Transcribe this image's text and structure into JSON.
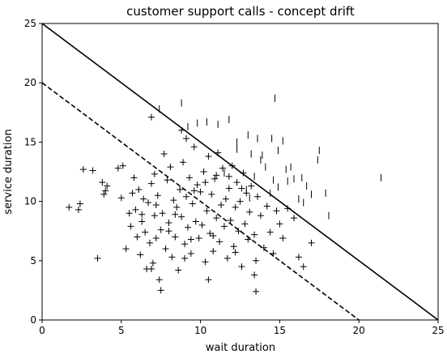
{
  "chart_data": {
    "type": "scatter",
    "title": "customer support calls - concept drift",
    "xlabel": "wait duration",
    "ylabel": "service duration",
    "xlim": [
      0,
      25
    ],
    "ylim": [
      0,
      25
    ],
    "xticks": [
      "0",
      "5",
      "10",
      "15",
      "20",
      "25"
    ],
    "yticks": [
      "0",
      "5",
      "10",
      "15",
      "20",
      "25"
    ],
    "grid": false,
    "lines": [
      {
        "style": "solid",
        "points": [
          [
            0,
            25
          ],
          [
            25,
            0
          ]
        ]
      },
      {
        "style": "dashed",
        "points": [
          [
            0,
            20
          ],
          [
            20,
            0
          ]
        ]
      }
    ],
    "series": [
      {
        "marker": "plus",
        "points": [
          [
            1.7,
            9.5
          ],
          [
            2.3,
            9.3
          ],
          [
            2.4,
            9.8
          ],
          [
            2.6,
            12.7
          ],
          [
            3.2,
            12.6
          ],
          [
            3.5,
            5.2
          ],
          [
            3.8,
            11.6
          ],
          [
            3.9,
            10.6
          ],
          [
            4.0,
            10.9
          ],
          [
            4.1,
            11.3
          ],
          [
            4.8,
            12.8
          ],
          [
            5.0,
            10.3
          ],
          [
            5.1,
            13.0
          ],
          [
            5.3,
            6.0
          ],
          [
            5.5,
            9.0
          ],
          [
            5.6,
            7.9
          ],
          [
            5.8,
            12.0
          ],
          [
            5.9,
            9.3
          ],
          [
            6.0,
            7.0
          ],
          [
            6.1,
            11.0
          ],
          [
            6.2,
            5.5
          ],
          [
            6.3,
            8.3
          ],
          [
            6.4,
            10.2
          ],
          [
            6.5,
            7.4
          ],
          [
            6.6,
            4.3
          ],
          [
            6.7,
            9.9
          ],
          [
            6.8,
            6.5
          ],
          [
            6.9,
            11.5
          ],
          [
            7.0,
            4.8
          ],
          [
            7.1,
            8.8
          ],
          [
            7.1,
            12.3
          ],
          [
            7.2,
            6.9
          ],
          [
            7.3,
            10.5
          ],
          [
            7.4,
            3.4
          ],
          [
            7.5,
            7.6
          ],
          [
            7.6,
            9.0
          ],
          [
            7.7,
            14.0
          ],
          [
            7.8,
            6.0
          ],
          [
            7.9,
            11.8
          ],
          [
            8.0,
            8.2
          ],
          [
            8.1,
            12.9
          ],
          [
            8.2,
            5.3
          ],
          [
            8.3,
            10.1
          ],
          [
            8.4,
            7.0
          ],
          [
            8.5,
            9.5
          ],
          [
            8.6,
            4.2
          ],
          [
            8.7,
            11.0
          ],
          [
            8.8,
            8.7
          ],
          [
            8.9,
            13.3
          ],
          [
            9.0,
            6.4
          ],
          [
            9.1,
            10.4
          ],
          [
            9.2,
            7.8
          ],
          [
            9.3,
            12.0
          ],
          [
            9.4,
            5.6
          ],
          [
            9.5,
            9.8
          ],
          [
            9.6,
            14.6
          ],
          [
            9.7,
            8.3
          ],
          [
            9.8,
            11.4
          ],
          [
            9.9,
            6.9
          ],
          [
            10.0,
            10.8
          ],
          [
            10.1,
            8.0
          ],
          [
            10.2,
            12.5
          ],
          [
            10.3,
            4.9
          ],
          [
            10.4,
            9.2
          ],
          [
            10.5,
            13.8
          ],
          [
            10.6,
            7.3
          ],
          [
            10.7,
            10.6
          ],
          [
            10.8,
            5.8
          ],
          [
            10.9,
            11.9
          ],
          [
            11.0,
            8.6
          ],
          [
            11.1,
            14.1
          ],
          [
            11.2,
            6.6
          ],
          [
            11.3,
            9.7
          ],
          [
            11.4,
            12.8
          ],
          [
            11.5,
            7.9
          ],
          [
            11.6,
            10.2
          ],
          [
            11.7,
            5.2
          ],
          [
            11.8,
            11.1
          ],
          [
            11.9,
            8.4
          ],
          [
            12.0,
            13.0
          ],
          [
            12.1,
            6.2
          ],
          [
            12.2,
            9.5
          ],
          [
            12.3,
            11.6
          ],
          [
            12.4,
            7.5
          ],
          [
            12.5,
            10.0
          ],
          [
            12.6,
            4.5
          ],
          [
            12.7,
            12.4
          ],
          [
            12.8,
            8.1
          ],
          [
            12.9,
            10.7
          ],
          [
            13.0,
            6.8
          ],
          [
            13.1,
            9.1
          ],
          [
            13.2,
            11.3
          ],
          [
            13.4,
            7.2
          ],
          [
            13.5,
            5.0
          ],
          [
            13.6,
            10.4
          ],
          [
            13.8,
            8.8
          ],
          [
            14.0,
            6.1
          ],
          [
            14.2,
            9.6
          ],
          [
            14.4,
            7.4
          ],
          [
            14.6,
            5.6
          ],
          [
            14.8,
            9.2
          ],
          [
            15.0,
            8.1
          ],
          [
            15.2,
            6.9
          ],
          [
            15.5,
            9.4
          ],
          [
            15.9,
            8.6
          ],
          [
            16.2,
            5.3
          ],
          [
            16.5,
            4.5
          ],
          [
            17.0,
            6.5
          ],
          [
            6.9,
            17.1
          ],
          [
            8.8,
            16.0
          ],
          [
            9.1,
            15.3
          ],
          [
            7.5,
            2.5
          ],
          [
            13.5,
            2.4
          ],
          [
            13.4,
            3.8
          ],
          [
            10.5,
            3.4
          ],
          [
            6.9,
            4.3
          ],
          [
            9.0,
            5.2
          ],
          [
            8.0,
            7.5
          ],
          [
            9.6,
            10.9
          ],
          [
            10.3,
            11.6
          ],
          [
            11.0,
            12.2
          ],
          [
            11.8,
            12.1
          ],
          [
            12.6,
            11.1
          ],
          [
            8.4,
            8.9
          ],
          [
            7.2,
            9.7
          ],
          [
            6.3,
            8.9
          ],
          [
            5.7,
            10.7
          ],
          [
            9.4,
            6.8
          ],
          [
            10.8,
            7.1
          ],
          [
            12.2,
            5.7
          ]
        ]
      },
      {
        "marker": "vline",
        "points": [
          [
            7.4,
            17.8
          ],
          [
            8.8,
            18.3
          ],
          [
            9.2,
            16.3
          ],
          [
            9.8,
            16.6
          ],
          [
            10.4,
            16.7
          ],
          [
            11.1,
            16.5
          ],
          [
            11.8,
            16.9
          ],
          [
            12.3,
            15.0
          ],
          [
            13.0,
            15.6
          ],
          [
            13.2,
            14.0
          ],
          [
            13.6,
            15.3
          ],
          [
            13.9,
            13.9
          ],
          [
            14.5,
            15.3
          ],
          [
            14.7,
            18.7
          ],
          [
            14.9,
            14.3
          ],
          [
            15.2,
            15.1
          ],
          [
            15.4,
            12.7
          ],
          [
            15.7,
            12.9
          ],
          [
            15.5,
            11.7
          ],
          [
            14.9,
            11.2
          ],
          [
            13.8,
            13.5
          ],
          [
            14.1,
            12.9
          ],
          [
            13.4,
            12.1
          ],
          [
            14.6,
            11.8
          ],
          [
            15.9,
            11.9
          ],
          [
            16.4,
            12.0
          ],
          [
            16.7,
            11.3
          ],
          [
            17.4,
            13.5
          ],
          [
            17.5,
            14.3
          ],
          [
            17.9,
            10.7
          ],
          [
            16.5,
            9.9
          ],
          [
            17.0,
            10.6
          ],
          [
            16.2,
            10.2
          ],
          [
            18.1,
            8.8
          ],
          [
            21.4,
            12.0
          ],
          [
            12.9,
            11.0
          ],
          [
            12.3,
            14.4
          ],
          [
            13.1,
            10.3
          ],
          [
            11.5,
            12.4
          ],
          [
            14.4,
            10.7
          ]
        ]
      }
    ]
  }
}
